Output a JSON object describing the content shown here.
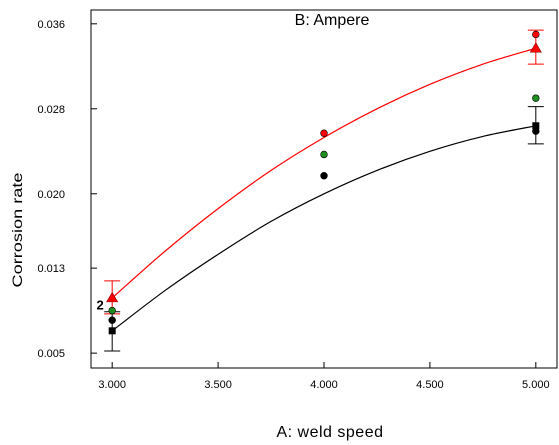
{
  "chart_data": {
    "type": "scatter",
    "title": "B: Ampere",
    "xlabel": "A: weld speed",
    "ylabel": "Corrosion rate",
    "xlim": [
      2.9,
      5.1
    ],
    "ylim": [
      0.0036,
      0.0373
    ],
    "x_ticks": [
      3.0,
      3.5,
      4.0,
      4.5,
      5.0
    ],
    "x_tick_labels": [
      "3.000",
      "3.500",
      "4.000",
      "4.500",
      "5.000"
    ],
    "y_ticks": [
      0.005,
      0.013,
      0.02,
      0.028,
      0.036
    ],
    "y_tick_labels": [
      "0.005",
      "0.013",
      "0.020",
      "0.028",
      "0.036"
    ],
    "grid": false,
    "annotations": [
      {
        "text": "2",
        "x": 2.96,
        "y": 0.0091
      }
    ],
    "series": [
      {
        "color": "#ff0000",
        "fit_curve": {
          "x": [
            3.0,
            3.25,
            3.5,
            3.75,
            4.0,
            4.25,
            4.5,
            4.75,
            5.0
          ],
          "y": [
            0.0102,
            0.0146,
            0.0186,
            0.0222,
            0.0253,
            0.028,
            0.0303,
            0.0322,
            0.0337
          ]
        },
        "prediction_points": [
          {
            "x": 3.0,
            "y": 0.0102
          },
          {
            "x": 5.0,
            "y": 0.0337
          }
        ],
        "error_bars": [
          {
            "x": 3.0,
            "low": 0.0087,
            "high": 0.0118
          },
          {
            "x": 5.0,
            "low": 0.0322,
            "high": 0.0354
          }
        ],
        "points": [
          {
            "x": 4.0,
            "y": 0.0257
          },
          {
            "x": 5.0,
            "y": 0.035
          }
        ]
      },
      {
        "color": "#000000",
        "fit_curve": {
          "x": [
            3.0,
            3.25,
            3.5,
            3.75,
            4.0,
            4.25,
            4.5,
            4.75,
            5.0
          ],
          "y": [
            0.0071,
            0.0109,
            0.0143,
            0.0174,
            0.02,
            0.0222,
            0.024,
            0.0254,
            0.0264
          ]
        },
        "prediction_points": [
          {
            "x": 3.0,
            "y": 0.0071
          },
          {
            "x": 5.0,
            "y": 0.0264
          }
        ],
        "error_bars": [
          {
            "x": 3.0,
            "low": 0.0052,
            "high": 0.0089
          },
          {
            "x": 5.0,
            "low": 0.0247,
            "high": 0.0282
          }
        ],
        "points": [
          {
            "x": 3.0,
            "y": 0.0081
          },
          {
            "x": 4.0,
            "y": 0.0217
          },
          {
            "x": 5.0,
            "y": 0.0259
          }
        ]
      },
      {
        "color": "#1e8c1e",
        "points": [
          {
            "x": 3.0,
            "y": 0.009
          },
          {
            "x": 4.0,
            "y": 0.0237
          },
          {
            "x": 5.0,
            "y": 0.029
          }
        ]
      }
    ]
  }
}
